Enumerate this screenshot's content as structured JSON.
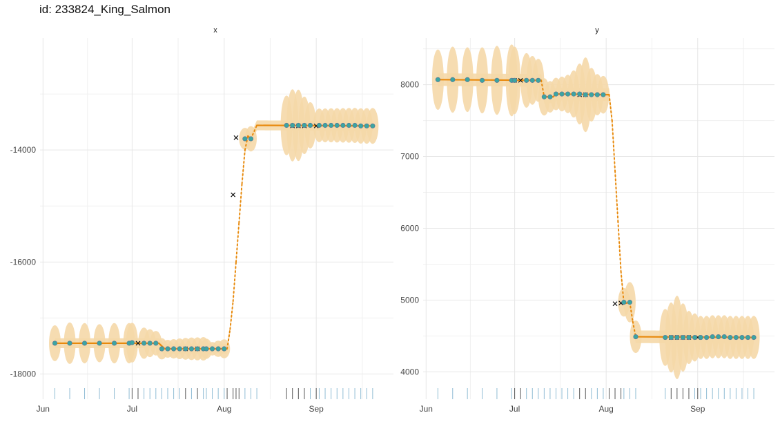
{
  "title": "id: 233824_King_Salmon",
  "colors": {
    "line": "#e8890c",
    "ribbon": "#f5d8a8",
    "point_fill": "#3aa6a2",
    "point_stroke": "#5b7c99",
    "cross": "#111111",
    "rug_light": "#8fbcd4",
    "rug_dark": "#555555",
    "grid": "#e6e6e6"
  },
  "chart_data": [
    {
      "type": "line",
      "panel": "x",
      "y_ticks": [
        -18000,
        -16000,
        -14000
      ],
      "y_tick_labels": [
        "-18000",
        "-16000",
        "-14000"
      ],
      "ylim": [
        -18450,
        -12000
      ],
      "x_ticks": [
        "2019-06-01",
        "2019-07-01",
        "2019-08-01",
        "2019-09-01"
      ],
      "x_tick_labels": [
        "Jun",
        "Jul",
        "Aug",
        "Sep"
      ],
      "xlim": [
        "2019-05-31",
        "2019-09-27"
      ],
      "fitted": [
        [
          "2019-06-05",
          -17450
        ],
        [
          "2019-07-10",
          -17450
        ],
        [
          "2019-07-12",
          -17550
        ],
        [
          "2019-08-02",
          -17550
        ],
        [
          "2019-08-03",
          -17200
        ],
        [
          "2019-08-04",
          -16700
        ],
        [
          "2019-08-05",
          -16000
        ],
        [
          "2019-08-06",
          -15300
        ],
        [
          "2019-08-07",
          -14600
        ],
        [
          "2019-08-08",
          -14000
        ],
        [
          "2019-08-09",
          -13750
        ],
        [
          "2019-08-10",
          -13800
        ],
        [
          "2019-08-12",
          -13560
        ],
        [
          "2019-09-20",
          -13570
        ]
      ],
      "ribbon": [
        [
          "2019-06-05",
          320
        ],
        [
          "2019-06-10",
          370
        ],
        [
          "2019-06-15",
          360
        ],
        [
          "2019-06-20",
          340
        ],
        [
          "2019-06-25",
          360
        ],
        [
          "2019-06-30",
          360
        ],
        [
          "2019-07-02",
          350
        ],
        [
          "2019-07-05",
          280
        ],
        [
          "2019-07-09",
          220
        ],
        [
          "2019-07-13",
          160
        ],
        [
          "2019-07-16",
          180
        ],
        [
          "2019-07-20",
          200
        ],
        [
          "2019-07-25",
          210
        ],
        [
          "2019-07-28",
          120
        ],
        [
          "2019-08-01",
          170
        ],
        [
          "2019-08-05",
          120
        ],
        [
          "2019-08-09",
          220
        ],
        [
          "2019-08-12",
          240
        ],
        [
          "2019-08-16",
          700
        ],
        [
          "2019-08-20",
          420
        ],
        [
          "2019-08-25",
          700
        ],
        [
          "2019-08-29",
          450
        ],
        [
          "2019-09-02",
          300
        ],
        [
          "2019-09-20",
          320
        ]
      ],
      "points": [
        [
          "2019-06-05",
          -17450
        ],
        [
          "2019-06-10",
          -17450
        ],
        [
          "2019-06-15",
          -17450
        ],
        [
          "2019-06-20",
          -17450
        ],
        [
          "2019-06-25",
          -17450
        ],
        [
          "2019-06-30",
          -17450
        ],
        [
          "2019-07-01",
          -17440
        ],
        [
          "2019-07-05",
          -17450
        ],
        [
          "2019-07-07",
          -17450
        ],
        [
          "2019-07-09",
          -17450
        ],
        [
          "2019-07-11",
          -17550
        ],
        [
          "2019-07-13",
          -17550
        ],
        [
          "2019-07-15",
          -17550
        ],
        [
          "2019-07-17",
          -17550
        ],
        [
          "2019-07-19",
          -17550
        ],
        [
          "2019-07-21",
          -17550
        ],
        [
          "2019-07-23",
          -17550
        ],
        [
          "2019-07-25",
          -17550
        ],
        [
          "2019-07-26",
          -17550
        ],
        [
          "2019-07-28",
          -17550
        ],
        [
          "2019-07-30",
          -17550
        ],
        [
          "2019-08-01",
          -17550
        ],
        [
          "2019-08-08",
          -13800
        ],
        [
          "2019-08-10",
          -13800
        ],
        [
          "2019-08-22",
          -13560
        ],
        [
          "2019-08-24",
          -13560
        ],
        [
          "2019-08-26",
          -13560
        ],
        [
          "2019-08-28",
          -13560
        ],
        [
          "2019-08-30",
          -13560
        ],
        [
          "2019-09-02",
          -13560
        ],
        [
          "2019-09-04",
          -13560
        ],
        [
          "2019-09-06",
          -13560
        ],
        [
          "2019-09-08",
          -13560
        ],
        [
          "2019-09-10",
          -13560
        ],
        [
          "2019-09-12",
          -13560
        ],
        [
          "2019-09-14",
          -13560
        ],
        [
          "2019-09-16",
          -13570
        ],
        [
          "2019-09-18",
          -13570
        ],
        [
          "2019-09-20",
          -13570
        ]
      ],
      "crosses": [
        [
          "2019-07-03",
          -17450
        ],
        [
          "2019-07-19",
          -17550
        ],
        [
          "2019-07-23",
          -17550
        ],
        [
          "2019-08-04",
          -14800
        ],
        [
          "2019-08-05",
          -13780
        ],
        [
          "2019-08-24",
          -13570
        ],
        [
          "2019-08-26",
          -13570
        ],
        [
          "2019-08-28",
          -13570
        ],
        [
          "2019-09-01",
          -13570
        ]
      ],
      "rug": [
        "2019-06-05",
        "2019-06-10",
        "2019-06-15",
        "2019-06-20",
        "2019-06-25",
        "2019-06-30",
        "2019-07-01",
        "2019-07-03",
        "2019-07-05",
        "2019-07-07",
        "2019-07-09",
        "2019-07-11",
        "2019-07-13",
        "2019-07-15",
        "2019-07-17",
        "2019-07-19",
        "2019-07-21",
        "2019-07-23",
        "2019-07-25",
        "2019-07-26",
        "2019-07-28",
        "2019-07-30",
        "2019-08-01",
        "2019-08-02",
        "2019-08-04",
        "2019-08-05",
        "2019-08-06",
        "2019-08-08",
        "2019-08-10",
        "2019-08-12",
        "2019-08-22",
        "2019-08-24",
        "2019-08-26",
        "2019-08-28",
        "2019-08-30",
        "2019-09-01",
        "2019-09-02",
        "2019-09-04",
        "2019-09-06",
        "2019-09-08",
        "2019-09-10",
        "2019-09-12",
        "2019-09-14",
        "2019-09-16",
        "2019-09-18",
        "2019-09-20"
      ],
      "rug_dark": [
        "2019-07-01",
        "2019-07-03",
        "2019-07-19",
        "2019-07-23",
        "2019-08-02",
        "2019-08-04",
        "2019-08-05",
        "2019-08-06",
        "2019-08-22",
        "2019-08-24",
        "2019-08-26",
        "2019-08-28",
        "2019-09-01"
      ]
    },
    {
      "type": "line",
      "panel": "y",
      "y_ticks": [
        4000,
        5000,
        6000,
        7000,
        8000
      ],
      "y_tick_labels": [
        "4000",
        "5000",
        "6000",
        "7000",
        "8000"
      ],
      "ylim": [
        3620,
        8650
      ],
      "x_ticks": [
        "2019-06-01",
        "2019-07-01",
        "2019-08-01",
        "2019-09-01"
      ],
      "x_tick_labels": [
        "Jun",
        "Jul",
        "Aug",
        "Sep"
      ],
      "xlim": [
        "2019-05-31",
        "2019-09-27"
      ],
      "fitted": [
        [
          "2019-06-05",
          8070
        ],
        [
          "2019-07-10",
          8060
        ],
        [
          "2019-07-11",
          7830
        ],
        [
          "2019-07-14",
          7830
        ],
        [
          "2019-07-15",
          7870
        ],
        [
          "2019-08-02",
          7860
        ],
        [
          "2019-08-03",
          7500
        ],
        [
          "2019-08-04",
          6800
        ],
        [
          "2019-08-05",
          6100
        ],
        [
          "2019-08-06",
          5400
        ],
        [
          "2019-08-07",
          4950
        ],
        [
          "2019-08-09",
          4970
        ],
        [
          "2019-08-10",
          4700
        ],
        [
          "2019-08-11",
          4490
        ],
        [
          "2019-09-20",
          4480
        ]
      ],
      "ribbon": [
        [
          "2019-06-05",
          420
        ],
        [
          "2019-06-10",
          460
        ],
        [
          "2019-06-15",
          450
        ],
        [
          "2019-06-20",
          460
        ],
        [
          "2019-06-25",
          480
        ],
        [
          "2019-06-30",
          500
        ],
        [
          "2019-07-02",
          440
        ],
        [
          "2019-07-05",
          380
        ],
        [
          "2019-07-09",
          300
        ],
        [
          "2019-07-13",
          220
        ],
        [
          "2019-07-16",
          230
        ],
        [
          "2019-07-20",
          280
        ],
        [
          "2019-07-25",
          520
        ],
        [
          "2019-07-28",
          300
        ],
        [
          "2019-08-01",
          250
        ],
        [
          "2019-08-05",
          120
        ],
        [
          "2019-08-09",
          280
        ],
        [
          "2019-08-12",
          200
        ],
        [
          "2019-08-16",
          660
        ],
        [
          "2019-08-20",
          350
        ],
        [
          "2019-08-25",
          580
        ],
        [
          "2019-08-29",
          370
        ],
        [
          "2019-09-02",
          300
        ],
        [
          "2019-09-20",
          300
        ]
      ],
      "points": [
        [
          "2019-06-05",
          8070
        ],
        [
          "2019-06-10",
          8070
        ],
        [
          "2019-06-15",
          8070
        ],
        [
          "2019-06-20",
          8060
        ],
        [
          "2019-06-25",
          8060
        ],
        [
          "2019-06-30",
          8060
        ],
        [
          "2019-07-01",
          8060
        ],
        [
          "2019-07-05",
          8060
        ],
        [
          "2019-07-07",
          8060
        ],
        [
          "2019-07-09",
          8060
        ],
        [
          "2019-07-11",
          7830
        ],
        [
          "2019-07-13",
          7830
        ],
        [
          "2019-07-15",
          7870
        ],
        [
          "2019-07-17",
          7870
        ],
        [
          "2019-07-19",
          7870
        ],
        [
          "2019-07-21",
          7870
        ],
        [
          "2019-07-23",
          7870
        ],
        [
          "2019-07-25",
          7860
        ],
        [
          "2019-07-27",
          7860
        ],
        [
          "2019-07-29",
          7860
        ],
        [
          "2019-07-31",
          7860
        ],
        [
          "2019-08-07",
          4970
        ],
        [
          "2019-08-09",
          4970
        ],
        [
          "2019-08-11",
          4490
        ],
        [
          "2019-08-21",
          4480
        ],
        [
          "2019-08-23",
          4480
        ],
        [
          "2019-08-25",
          4480
        ],
        [
          "2019-08-27",
          4480
        ],
        [
          "2019-08-29",
          4480
        ],
        [
          "2019-08-31",
          4480
        ],
        [
          "2019-09-02",
          4480
        ],
        [
          "2019-09-04",
          4480
        ],
        [
          "2019-09-06",
          4490
        ],
        [
          "2019-09-08",
          4490
        ],
        [
          "2019-09-10",
          4490
        ],
        [
          "2019-09-12",
          4480
        ],
        [
          "2019-09-14",
          4480
        ],
        [
          "2019-09-16",
          4480
        ],
        [
          "2019-09-18",
          4480
        ],
        [
          "2019-09-20",
          4480
        ]
      ],
      "crosses": [
        [
          "2019-07-01",
          8060
        ],
        [
          "2019-07-03",
          8060
        ],
        [
          "2019-07-23",
          7860
        ],
        [
          "2019-07-25",
          7860
        ],
        [
          "2019-08-04",
          4950
        ],
        [
          "2019-08-06",
          4960
        ],
        [
          "2019-08-23",
          4480
        ],
        [
          "2019-08-25",
          4480
        ],
        [
          "2019-08-27",
          4480
        ],
        [
          "2019-08-29",
          4480
        ],
        [
          "2019-09-01",
          4480
        ]
      ],
      "rug": [
        "2019-06-05",
        "2019-06-10",
        "2019-06-15",
        "2019-06-20",
        "2019-06-25",
        "2019-06-30",
        "2019-07-01",
        "2019-07-03",
        "2019-07-05",
        "2019-07-07",
        "2019-07-09",
        "2019-07-11",
        "2019-07-13",
        "2019-07-15",
        "2019-07-17",
        "2019-07-19",
        "2019-07-21",
        "2019-07-23",
        "2019-07-25",
        "2019-07-27",
        "2019-07-29",
        "2019-07-31",
        "2019-08-02",
        "2019-08-04",
        "2019-08-06",
        "2019-08-07",
        "2019-08-09",
        "2019-08-11",
        "2019-08-21",
        "2019-08-23",
        "2019-08-25",
        "2019-08-27",
        "2019-08-29",
        "2019-08-31",
        "2019-09-01",
        "2019-09-02",
        "2019-09-04",
        "2019-09-06",
        "2019-09-08",
        "2019-09-10",
        "2019-09-12",
        "2019-09-14",
        "2019-09-16",
        "2019-09-18",
        "2019-09-20"
      ],
      "rug_dark": [
        "2019-07-01",
        "2019-07-03",
        "2019-07-23",
        "2019-07-25",
        "2019-08-02",
        "2019-08-04",
        "2019-08-06",
        "2019-08-23",
        "2019-08-25",
        "2019-08-27",
        "2019-08-29",
        "2019-09-01"
      ]
    }
  ]
}
